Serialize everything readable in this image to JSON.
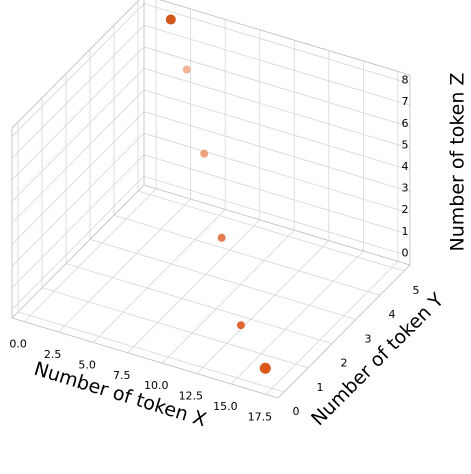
{
  "chart_data": {
    "type": "scatter3d",
    "x_label": "Number of token X",
    "y_label": "Number of token Y",
    "z_label": "Number of token Z",
    "x": [
      1.5,
      3,
      6,
      9,
      13,
      16.5
    ],
    "y": [
      5,
      4.8,
      3.8,
      2.8,
      1.3,
      0.3
    ],
    "z": [
      8,
      6.2,
      4,
      1.8,
      0.2,
      0
    ],
    "sizes": [
      5,
      4,
      4,
      4,
      4,
      5.5
    ],
    "colors": [
      "#d3561c",
      "#f2b495",
      "#eda17c",
      "#e27d4f",
      "#e06630",
      "#dd5518"
    ],
    "xlim": [
      -0.875,
      18.375
    ],
    "ylim": [
      -0.25,
      5.25
    ],
    "zlim": [
      -0.4,
      8.4
    ],
    "xticks": [
      {
        "value": 0,
        "label": "0.0"
      },
      2.5,
      {
        "value": 5,
        "label": "5.0"
      },
      7.5,
      {
        "value": 10,
        "label": "10.0"
      },
      12.5,
      {
        "value": 15,
        "label": "15.0"
      },
      17.5
    ],
    "yticks": [
      0,
      1,
      2,
      3,
      4,
      5
    ],
    "zticks": [
      0,
      1,
      2,
      3,
      4,
      5,
      6,
      7,
      8
    ],
    "grid": true
  }
}
